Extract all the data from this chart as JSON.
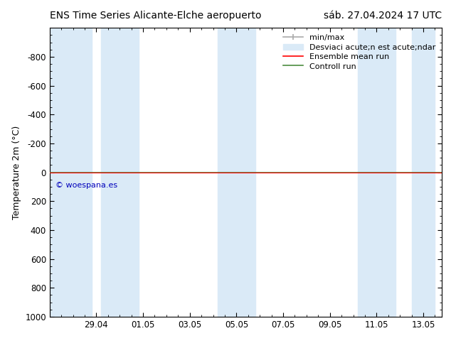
{
  "title_left": "ENS Time Series Alicante-Elche aeropuerto",
  "title_right": "sáb. 27.04.2024 17 UTC",
  "ylabel": "Temperature 2m (°C)",
  "ylim_bottom": 1000,
  "ylim_top": -1000,
  "yticks": [
    -800,
    -600,
    -400,
    -200,
    0,
    200,
    400,
    600,
    800,
    1000
  ],
  "xtick_labels": [
    "29.04",
    "01.05",
    "03.05",
    "05.05",
    "07.05",
    "09.05",
    "11.05",
    "13.05"
  ],
  "background_color": "#ffffff",
  "plot_bg_color": "#ffffff",
  "shaded_band_color": "#daeaf7",
  "ensemble_mean_color": "#ff0000",
  "control_run_color": "#4c8c3f",
  "watermark": "© woespana.es",
  "watermark_color": "#0000bb",
  "legend_entries": [
    "min/max",
    "Desviacié acute;n esté acute;ndar",
    "Ensemble mean run",
    "Controll run"
  ],
  "legend_label_1": "min/max",
  "legend_label_2": "Desviaci acute;n est acute;ndar",
  "legend_label_3": "Ensemble mean run",
  "legend_label_4": "Controll run",
  "shaded_bands": [
    [
      0.0,
      1.8
    ],
    [
      2.2,
      3.8
    ],
    [
      7.2,
      8.8
    ],
    [
      13.2,
      14.8
    ],
    [
      15.5,
      16.5
    ]
  ],
  "x_tick_positions": [
    2,
    4,
    6,
    8,
    10,
    12,
    14,
    16
  ],
  "x_min": 0.0,
  "x_max": 16.8,
  "font_size_title": 10,
  "font_size_ticks": 8.5,
  "font_size_ylabel": 9,
  "font_size_legend": 8,
  "font_size_watermark": 8
}
